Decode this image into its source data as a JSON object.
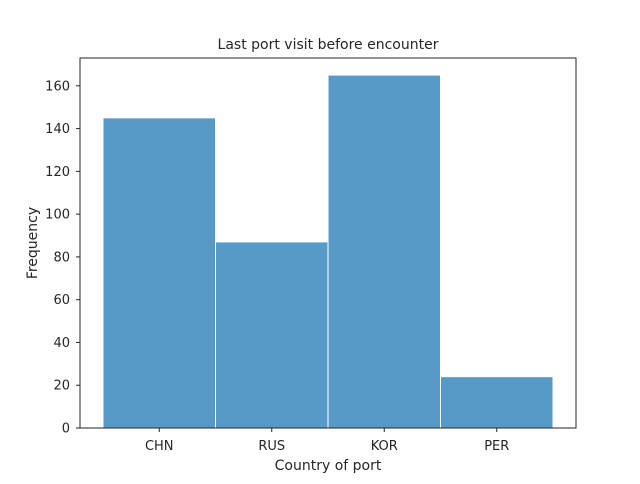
{
  "chart_data": {
    "type": "bar",
    "title": "Last port visit before encounter",
    "xlabel": "Country of port",
    "ylabel": "Frequency",
    "categories": [
      "CHN",
      "RUS",
      "KOR",
      "PER"
    ],
    "values": [
      145,
      87,
      165,
      24
    ],
    "ylim": [
      0,
      173
    ],
    "yticks": [
      0,
      20,
      40,
      60,
      80,
      100,
      120,
      140,
      160
    ],
    "grid": false,
    "bar_color": "#5799c7",
    "edge_color": "#ffffff"
  }
}
